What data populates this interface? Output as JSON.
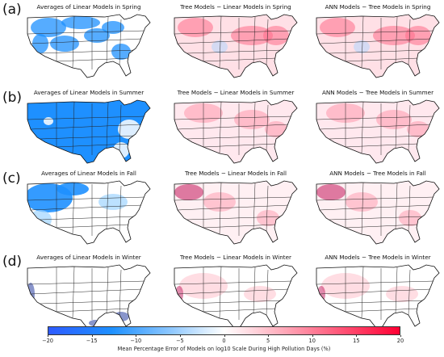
{
  "rows": [
    {
      "label": "(a)",
      "titles": [
        "Averages of Linear Models in Spring",
        "Tree Models − Linear Models in Spring",
        "ANN Models − Tree Models in Spring"
      ]
    },
    {
      "label": "(b)",
      "titles": [
        "Averages of Linear Models in Summer",
        "Tree Models − Linear Models in Summer",
        "ANN Models − Tree Models in Summer"
      ]
    },
    {
      "label": "(c)",
      "titles": [
        "Averages of Linear Models in Fall",
        "Tree Models − Linear Models in Fall",
        "ANN Models − Tree Models in Fall"
      ]
    },
    {
      "label": "(d)",
      "titles": [
        "Averages of Linear Models in Winter",
        "Tree Models − Linear Models in Winter",
        "ANN Models − Tree Models in Winter"
      ]
    }
  ],
  "colorbar": {
    "label": "Mean Percentage Error of Models on log10 Scale During High Pollution Days (%)",
    "min": -20,
    "max": 20,
    "ticks": [
      "−20",
      "−15",
      "−10",
      "−5",
      "0",
      "5",
      "10",
      "15",
      "20"
    ],
    "colors": {
      "negative": "#1e90ff",
      "neutral": "#ffffff",
      "positive": "#ff0033"
    }
  },
  "panel_fills": [
    [
      "blue-sparse",
      "pink-medium",
      "pink-medium"
    ],
    [
      "blue-full",
      "pink-light",
      "pink-light"
    ],
    [
      "blue-west",
      "pink-northwest",
      "pink-northwest"
    ],
    [
      "white-edges",
      "pink-faint",
      "pink-faint"
    ]
  ]
}
